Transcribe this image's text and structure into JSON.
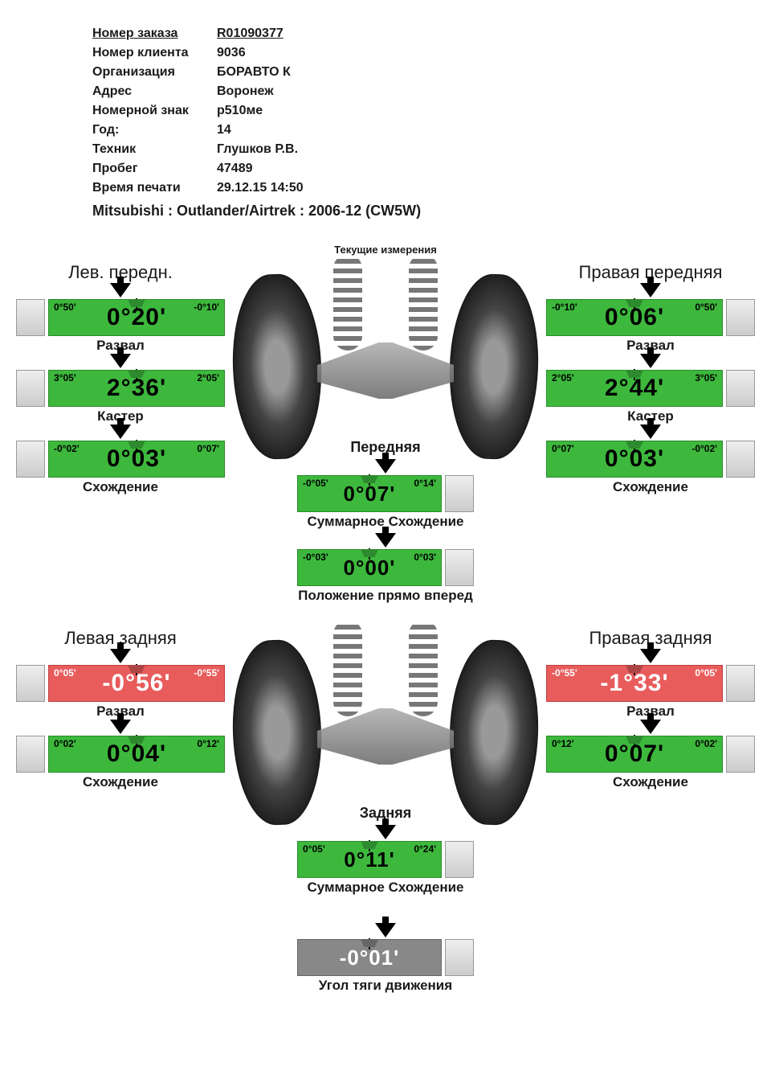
{
  "header": {
    "rows": [
      {
        "label": "Номер заказа",
        "value": "R01090377",
        "underlined": true
      },
      {
        "label": "Номер клиента",
        "value": "9036"
      },
      {
        "label": "Организация",
        "value": "БОРАВТО К"
      },
      {
        "label": "Адрес",
        "value": "Воронеж"
      },
      {
        "label": "Номерной знак",
        "value": "р510ме"
      },
      {
        "label": "Год:",
        "value": "14"
      },
      {
        "label": "Техник",
        "value": "Глушков Р.В."
      },
      {
        "label": "Пробег",
        "value": "47489"
      },
      {
        "label": "Время печати",
        "value": "29.12.15 14:50"
      }
    ],
    "vehicle": "Mitsubishi : Outlander/Airtrek : 2006-12 (CW5W)"
  },
  "section_title": "Текущие измерения",
  "colors": {
    "green": "#3db83d",
    "red": "#e85c5c",
    "gray": "#888888"
  },
  "front": {
    "left_title": "Лев. передн.",
    "right_title": "Правая передняя",
    "center_title": "Передняя",
    "left": [
      {
        "min": "0°50'",
        "max": "-0°10'",
        "value": "0°20'",
        "label": "Развал",
        "color": "green"
      },
      {
        "min": "3°05'",
        "max": "2°05'",
        "value": "2°36'",
        "label": "Кастер",
        "color": "green"
      },
      {
        "min": "-0°02'",
        "max": "0°07'",
        "value": "0°03'",
        "label": "Схождение",
        "color": "green"
      }
    ],
    "right": [
      {
        "min": "-0°10'",
        "max": "0°50'",
        "value": "0°06'",
        "label": "Развал",
        "color": "green"
      },
      {
        "min": "2°05'",
        "max": "3°05'",
        "value": "2°44'",
        "label": "Кастер",
        "color": "green"
      },
      {
        "min": "0°07'",
        "max": "-0°02'",
        "value": "0°03'",
        "label": "Схождение",
        "color": "green"
      }
    ],
    "center": [
      {
        "min": "-0°05'",
        "max": "0°14'",
        "value": "0°07'",
        "label": "Суммарное Схождение",
        "color": "green"
      },
      {
        "min": "-0°03'",
        "max": "0°03'",
        "value": "0°00'",
        "label": "Положение прямо вперед",
        "color": "green"
      }
    ]
  },
  "rear": {
    "left_title": "Левая задняя",
    "right_title": "Правая задняя",
    "center_title": "Задняя",
    "left": [
      {
        "min": "0°05'",
        "max": "-0°55'",
        "value": "-0°56'",
        "label": "Развал",
        "color": "red"
      },
      {
        "min": "0°02'",
        "max": "0°12'",
        "value": "0°04'",
        "label": "Схождение",
        "color": "green"
      }
    ],
    "right": [
      {
        "min": "-0°55'",
        "max": "0°05'",
        "value": "-1°33'",
        "label": "Развал",
        "color": "red"
      },
      {
        "min": "0°12'",
        "max": "0°02'",
        "value": "0°07'",
        "label": "Схождение",
        "color": "green"
      }
    ],
    "center": [
      {
        "min": "0°05'",
        "max": "0°24'",
        "value": "0°11'",
        "label": "Суммарное Схождение",
        "color": "green"
      }
    ],
    "thrust": {
      "value": "-0°01'",
      "label": "Угол тяги движения",
      "color": "gray"
    }
  }
}
